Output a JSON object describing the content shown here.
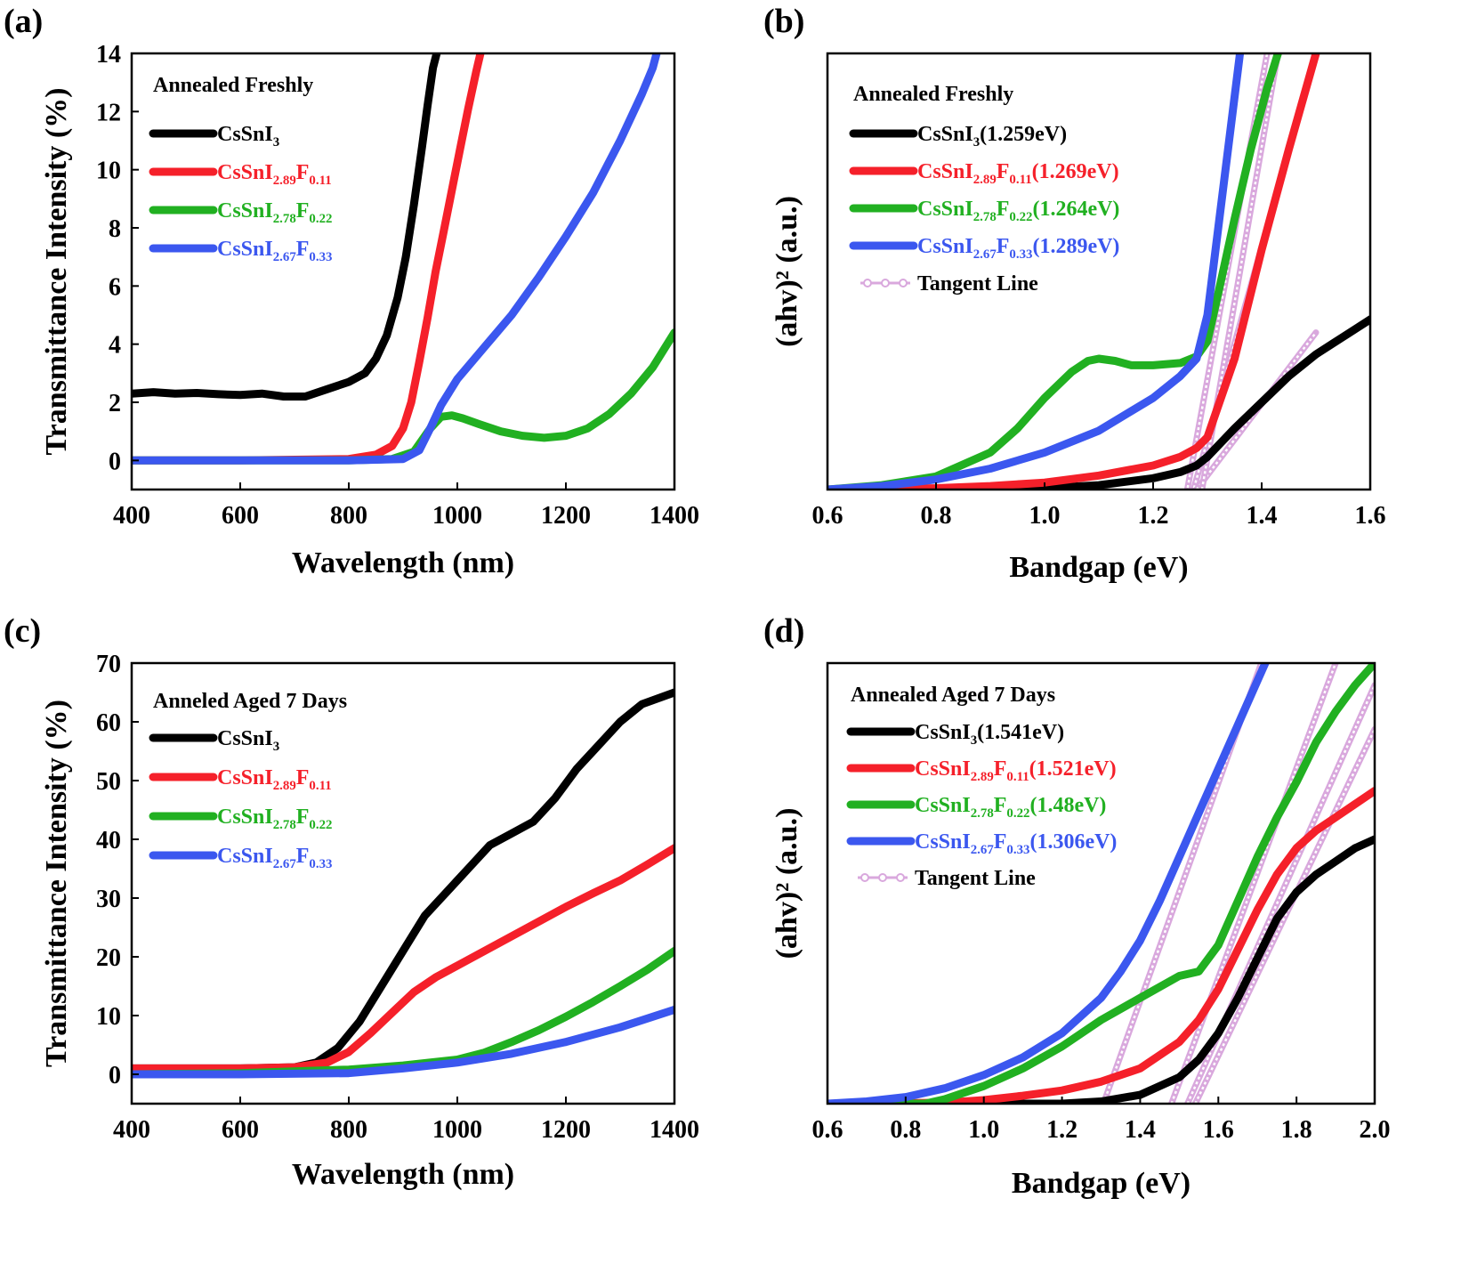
{
  "chart_data": [
    {
      "id": "a",
      "panel_label": "(a)",
      "type": "line",
      "annotation": "Annealed Freshly",
      "xlabel": "Wavelength (nm)",
      "ylabel": "Transmittance Intensity (%)",
      "xlim": [
        400,
        1400
      ],
      "ylim": [
        -1,
        14
      ],
      "xticks": [
        400,
        600,
        800,
        1000,
        1200,
        1400
      ],
      "yticks": [
        0,
        2,
        4,
        6,
        8,
        10,
        12,
        14
      ],
      "series": [
        {
          "name": "CsSnI",
          "sub": "3",
          "name2": "",
          "sub2": "",
          "suffix": "",
          "color": "#000000",
          "x": [
            400,
            440,
            480,
            520,
            560,
            600,
            640,
            680,
            720,
            760,
            800,
            830,
            850,
            870,
            890,
            905,
            920,
            935,
            945,
            955,
            962,
            966
          ],
          "y": [
            2.3,
            2.35,
            2.3,
            2.32,
            2.28,
            2.25,
            2.3,
            2.2,
            2.2,
            2.45,
            2.7,
            3.0,
            3.5,
            4.3,
            5.6,
            7.0,
            8.8,
            10.8,
            12.2,
            13.5,
            14.0,
            14.2
          ]
        },
        {
          "name": "CsSnI",
          "sub": "2.89",
          "name2": "F",
          "sub2": "0.11",
          "suffix": "",
          "color": "#f5202a",
          "x": [
            400,
            600,
            800,
            850,
            880,
            900,
            915,
            930,
            945,
            960,
            975,
            990,
            1005,
            1020,
            1035,
            1045
          ],
          "y": [
            0,
            0,
            0.05,
            0.2,
            0.5,
            1.1,
            2.0,
            3.4,
            4.9,
            6.5,
            7.9,
            9.3,
            10.7,
            12.1,
            13.4,
            14.2
          ]
        },
        {
          "name": "CsSnI",
          "sub": "2.78",
          "name2": "F",
          "sub2": "0.22",
          "suffix": "",
          "color": "#21b021",
          "x": [
            400,
            600,
            800,
            880,
            920,
            950,
            970,
            990,
            1010,
            1040,
            1080,
            1120,
            1160,
            1200,
            1240,
            1280,
            1320,
            1360,
            1400
          ],
          "y": [
            0,
            0,
            0,
            0.05,
            0.3,
            1.1,
            1.5,
            1.55,
            1.45,
            1.25,
            1.0,
            0.85,
            0.78,
            0.85,
            1.1,
            1.6,
            2.3,
            3.2,
            4.4
          ]
        },
        {
          "name": "CsSnI",
          "sub": "2.67",
          "name2": "F",
          "sub2": "0.33",
          "suffix": "",
          "color": "#3b57ef",
          "x": [
            400,
            600,
            800,
            900,
            930,
            950,
            970,
            1000,
            1050,
            1100,
            1150,
            1200,
            1250,
            1300,
            1340,
            1360,
            1370
          ],
          "y": [
            0,
            0,
            0,
            0.05,
            0.35,
            1.1,
            1.9,
            2.8,
            3.9,
            5.0,
            6.3,
            7.7,
            9.2,
            11.0,
            12.6,
            13.5,
            14.2
          ]
        }
      ]
    },
    {
      "id": "b",
      "panel_label": "(b)",
      "type": "line",
      "annotation": "Annealed Freshly",
      "xlabel": "Bandgap (eV)",
      "ylabel": "(ahv)² (a.u.)",
      "xlim": [
        0.6,
        1.6
      ],
      "ylim": [
        0,
        100
      ],
      "xticks": [
        "0.6",
        "0.8",
        "1.0",
        "1.2",
        "1.4",
        "1.6"
      ],
      "yticks": [],
      "tangent_name": "Tangent Line",
      "tangent_color": "#d9a8dd",
      "series": [
        {
          "name": "CsSnI",
          "sub": "3",
          "name2": "",
          "sub2": "",
          "suffix": "(1.259eV)",
          "color": "#000000",
          "x": [
            0.6,
            0.9,
            1.0,
            1.1,
            1.2,
            1.25,
            1.28,
            1.3,
            1.35,
            1.4,
            1.45,
            1.5,
            1.55,
            1.6
          ],
          "y": [
            0,
            0,
            0.3,
            1.0,
            2.6,
            4.0,
            5.5,
            7.5,
            14,
            20,
            26,
            31,
            35,
            39
          ]
        },
        {
          "name": "CsSnI",
          "sub": "2.89",
          "name2": "F",
          "sub2": "0.11",
          "suffix": "(1.269eV)",
          "color": "#f5202a",
          "x": [
            0.6,
            0.8,
            0.9,
            1.0,
            1.1,
            1.2,
            1.25,
            1.28,
            1.3,
            1.35,
            1.4,
            1.45,
            1.5
          ],
          "y": [
            0,
            0.3,
            0.8,
            1.6,
            3.2,
            5.5,
            7.5,
            9.5,
            12,
            30,
            55,
            78,
            100
          ]
        },
        {
          "name": "CsSnI",
          "sub": "2.78",
          "name2": "F",
          "sub2": "0.22",
          "suffix": "(1.264eV)",
          "color": "#21b021",
          "x": [
            0.6,
            0.7,
            0.8,
            0.9,
            0.95,
            1.0,
            1.05,
            1.08,
            1.1,
            1.13,
            1.16,
            1.2,
            1.25,
            1.28,
            1.3,
            1.32,
            1.35,
            1.38,
            1.41,
            1.43
          ],
          "y": [
            0,
            1,
            3,
            8.5,
            14,
            21,
            27,
            29.5,
            30,
            29.5,
            28.5,
            28.5,
            29,
            30.5,
            34,
            45,
            62,
            78,
            92,
            100
          ]
        },
        {
          "name": "CsSnI",
          "sub": "2.67",
          "name2": "F",
          "sub2": "0.33",
          "suffix": "(1.289eV)",
          "color": "#3b57ef",
          "x": [
            0.6,
            0.7,
            0.8,
            0.9,
            1.0,
            1.1,
            1.2,
            1.25,
            1.28,
            1.3,
            1.32,
            1.34,
            1.36
          ],
          "y": [
            0,
            0.8,
            2.3,
            4.8,
            8.5,
            13.5,
            21,
            26,
            30,
            40,
            60,
            80,
            100
          ]
        }
      ],
      "tangents": [
        {
          "x": [
            1.26,
            1.41
          ],
          "y": [
            -2,
            100
          ]
        },
        {
          "x": [
            1.27,
            1.5
          ],
          "y": [
            -2,
            100
          ]
        },
        {
          "x": [
            1.28,
            1.5
          ],
          "y": [
            0,
            36
          ]
        },
        {
          "x": [
            1.29,
            1.43
          ],
          "y": [
            0,
            100
          ]
        }
      ]
    },
    {
      "id": "c",
      "panel_label": "(c)",
      "type": "line",
      "annotation": "Anneled Aged 7 Days",
      "xlabel": "Wavelength (nm)",
      "ylabel": "Transmittance Intensity (%)",
      "xlim": [
        400,
        1400
      ],
      "ylim": [
        -5,
        70
      ],
      "xticks": [
        400,
        600,
        800,
        1000,
        1200,
        1400
      ],
      "yticks": [
        0,
        10,
        20,
        30,
        40,
        50,
        60,
        70
      ],
      "series": [
        {
          "name": "CsSnI",
          "sub": "3",
          "name2": "",
          "sub2": "",
          "suffix": "",
          "color": "#000000",
          "x": [
            400,
            600,
            700,
            740,
            780,
            820,
            860,
            900,
            940,
            980,
            1020,
            1060,
            1100,
            1140,
            1180,
            1220,
            1260,
            1300,
            1340,
            1400
          ],
          "y": [
            1,
            1,
            1.2,
            2,
            4.5,
            9,
            15,
            21,
            27,
            31,
            35,
            39,
            41,
            43,
            47,
            52,
            56,
            60,
            63,
            65
          ]
        },
        {
          "name": "CsSnI",
          "sub": "2.89",
          "name2": "F",
          "sub2": "0.11",
          "suffix": "",
          "color": "#f5202a",
          "x": [
            400,
            600,
            700,
            760,
            800,
            840,
            880,
            920,
            960,
            1000,
            1050,
            1100,
            1150,
            1200,
            1250,
            1300,
            1350,
            1400
          ],
          "y": [
            1,
            1,
            1.2,
            2,
            3.8,
            7,
            10.5,
            14,
            16.5,
            18.5,
            21,
            23.5,
            26,
            28.5,
            30.8,
            33,
            35.7,
            38.5
          ]
        },
        {
          "name": "CsSnI",
          "sub": "2.78",
          "name2": "F",
          "sub2": "0.22",
          "suffix": "",
          "color": "#21b021",
          "x": [
            400,
            600,
            800,
            900,
            1000,
            1050,
            1100,
            1150,
            1200,
            1250,
            1300,
            1350,
            1400
          ],
          "y": [
            0,
            0.2,
            0.8,
            1.5,
            2.5,
            3.7,
            5.5,
            7.5,
            9.8,
            12.3,
            15,
            17.8,
            21
          ]
        },
        {
          "name": "CsSnI",
          "sub": "2.67",
          "name2": "F",
          "sub2": "0.33",
          "suffix": "",
          "color": "#3b57ef",
          "x": [
            400,
            600,
            800,
            900,
            1000,
            1100,
            1200,
            1300,
            1400
          ],
          "y": [
            0,
            0,
            0.2,
            1.0,
            2,
            3.5,
            5.5,
            8,
            11
          ]
        }
      ]
    },
    {
      "id": "d",
      "panel_label": "(d)",
      "type": "line",
      "annotation": "Annealed Aged 7 Days",
      "xlabel": "Bandgap (eV)",
      "ylabel": "(ahv)² (a.u.)",
      "xlim": [
        0.6,
        2.0
      ],
      "ylim": [
        0,
        100
      ],
      "xticks": [
        "0.6",
        "0.8",
        "1.0",
        "1.2",
        "1.4",
        "1.6",
        "1.8",
        "2.0"
      ],
      "yticks": [],
      "tangent_name": "Tangent Line",
      "tangent_color": "#d9a8dd",
      "series": [
        {
          "name": "CsSnI",
          "sub": "3",
          "name2": "",
          "sub2": "",
          "suffix": "(1.541eV)",
          "color": "#000000",
          "x": [
            0.6,
            1.2,
            1.3,
            1.4,
            1.5,
            1.55,
            1.6,
            1.65,
            1.7,
            1.75,
            1.8,
            1.85,
            1.9,
            1.95,
            2.0
          ],
          "y": [
            0,
            0,
            0.5,
            2,
            6,
            10,
            16,
            24,
            33,
            42,
            48,
            52,
            55,
            58,
            60
          ]
        },
        {
          "name": "CsSnI",
          "sub": "2.89",
          "name2": "F",
          "sub2": "0.11",
          "suffix": "(1.521eV)",
          "color": "#f5202a",
          "x": [
            0.6,
            0.9,
            1.0,
            1.1,
            1.2,
            1.3,
            1.4,
            1.5,
            1.55,
            1.6,
            1.65,
            1.7,
            1.75,
            1.8,
            1.85,
            1.9,
            1.95,
            2.0
          ],
          "y": [
            0,
            0.2,
            0.8,
            1.8,
            3,
            5,
            8,
            14,
            19,
            26,
            35,
            44,
            52,
            58,
            62,
            65,
            68,
            71
          ]
        },
        {
          "name": "CsSnI",
          "sub": "2.78",
          "name2": "F",
          "sub2": "0.22",
          "suffix": "(1.48eV)",
          "color": "#21b021",
          "x": [
            0.6,
            0.85,
            0.9,
            1.0,
            1.1,
            1.2,
            1.3,
            1.4,
            1.5,
            1.55,
            1.6,
            1.65,
            1.7,
            1.75,
            1.8,
            1.85,
            1.9,
            1.95,
            2.0
          ],
          "y": [
            0,
            0,
            1,
            4,
            8,
            13,
            19,
            24,
            29,
            30,
            36,
            46,
            56,
            65,
            73,
            82,
            89,
            95,
            100
          ]
        },
        {
          "name": "CsSnI",
          "sub": "2.67",
          "name2": "F",
          "sub2": "0.33",
          "suffix": "(1.306eV)",
          "color": "#3b57ef",
          "x": [
            0.6,
            0.7,
            0.8,
            0.9,
            1.0,
            1.1,
            1.2,
            1.3,
            1.35,
            1.4,
            1.45,
            1.5,
            1.55,
            1.6,
            1.65,
            1.7,
            1.72
          ],
          "y": [
            0,
            0.5,
            1.5,
            3.5,
            6.5,
            10.5,
            16,
            24,
            30,
            37,
            46,
            56,
            66,
            76,
            86,
            96,
            100
          ]
        }
      ],
      "tangents": [
        {
          "x": [
            1.306,
            1.71
          ],
          "y": [
            0,
            100
          ]
        },
        {
          "x": [
            1.48,
            1.9
          ],
          "y": [
            0,
            100
          ]
        },
        {
          "x": [
            1.521,
            2.0
          ],
          "y": [
            0,
            95
          ]
        },
        {
          "x": [
            1.541,
            2.0
          ],
          "y": [
            0,
            85
          ]
        }
      ]
    }
  ]
}
